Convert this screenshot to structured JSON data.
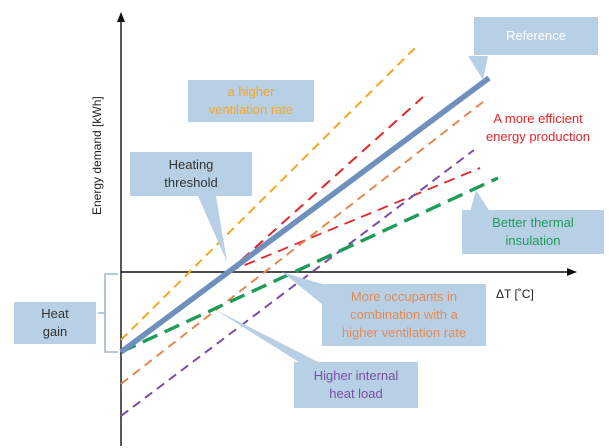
{
  "axes": {
    "y_label": "Energy demand  [kWh]",
    "x_label": "ΔT  [˚C]"
  },
  "labels": {
    "reference": "Reference",
    "higher_ventilation_line1": "a higher",
    "higher_ventilation_line2": "ventilation rate",
    "efficient_line1": "A more efficient",
    "efficient_line2": "energy production",
    "heating_threshold_line1": "Heating",
    "heating_threshold_line2": "threshold",
    "thermal_line1": "Better thermal",
    "thermal_line2": "insulation",
    "heat_gain_line1": "Heat",
    "heat_gain_line2": "gain",
    "occupants_line1": "More occupants in",
    "occupants_line2": "combination with a",
    "occupants_line3": "higher ventilation rate",
    "internal_line1": "Higher internal",
    "internal_line2": "heat load"
  },
  "colors": {
    "reference": "#6f8fbd",
    "higher_ventilation": "#f5a623",
    "efficient_production": "#e0262b",
    "occupants": "#e38a52",
    "internal_heat": "#7a4ea3",
    "thermal_insulation": "#1e9a5a",
    "callout_bg": "#b8d0e6",
    "axis": "#111111"
  }
}
